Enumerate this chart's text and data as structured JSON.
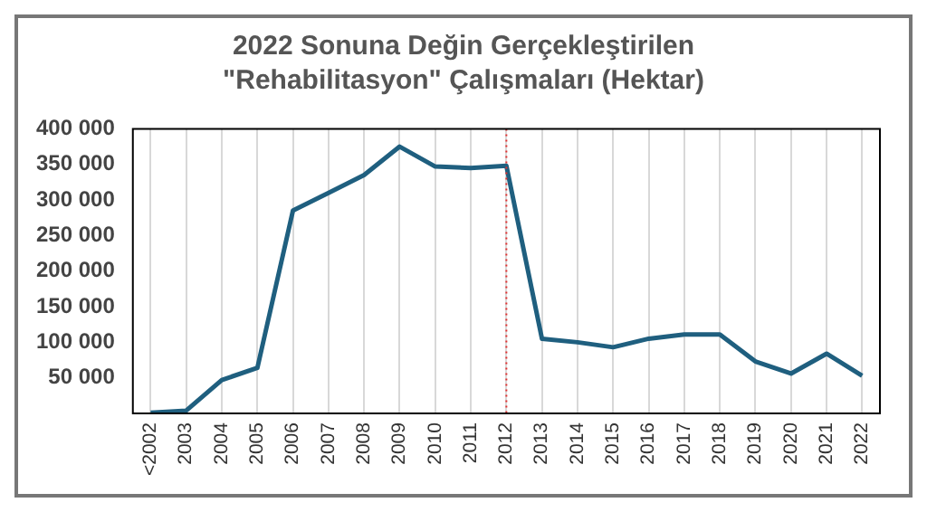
{
  "chart_data": {
    "type": "line",
    "title": "2022 Sonuna Değin Gerçekleştirilen \"Rehabilitasyon\" Çalışmaları (Hektar)",
    "categories": [
      "<2002",
      "2003",
      "2004",
      "2005",
      "2006",
      "2007",
      "2008",
      "2009",
      "2010",
      "2011",
      "2012",
      "2013",
      "2014",
      "2015",
      "2016",
      "2017",
      "2018",
      "2019",
      "2020",
      "2021",
      "2022"
    ],
    "series": [
      {
        "color": "#1f5f7f",
        "values": [
          1000,
          4000,
          47000,
          64000,
          285000,
          310000,
          335000,
          375000,
          347000,
          345000,
          348000,
          105000,
          100000,
          93000,
          105000,
          111000,
          111000,
          73000,
          56000,
          84000,
          53000
        ]
      }
    ],
    "ylim": [
      0,
      400000
    ],
    "yticks": [
      {
        "value": 50000,
        "label": "50 000"
      },
      {
        "value": 100000,
        "label": "100 000"
      },
      {
        "value": 150000,
        "label": "150 000"
      },
      {
        "value": 200000,
        "label": "200 000"
      },
      {
        "value": 250000,
        "label": "250 000"
      },
      {
        "value": 300000,
        "label": "300 000"
      },
      {
        "value": 350000,
        "label": "350 000"
      },
      {
        "value": 400000,
        "label": "400 000"
      }
    ],
    "grid": "x",
    "legend": false,
    "marker": "none",
    "line_style": "solid",
    "ref_lines": [
      {
        "axis": "x",
        "value": "2012",
        "color": "#e03030",
        "line_style": "dotted"
      }
    ]
  }
}
